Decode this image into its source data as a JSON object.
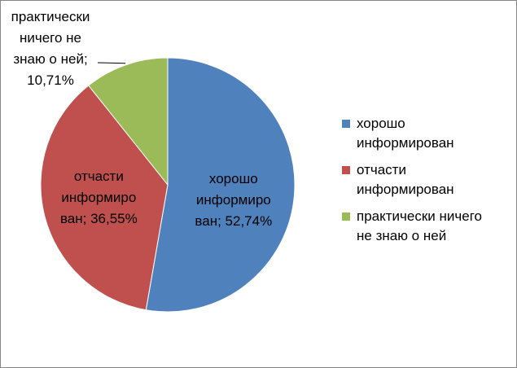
{
  "chart_data": {
    "type": "pie",
    "title": "",
    "legend_position": "right",
    "slices": [
      {
        "label": "хорошо информирован",
        "value": 52.74,
        "color": "#4F81BD",
        "data_label_lines": [
          "хорошо",
          "информиро",
          "ван; 52,74%"
        ]
      },
      {
        "label": "отчасти информирован",
        "value": 36.55,
        "color": "#C0504D",
        "data_label_lines": [
          "отчасти",
          "информиро",
          "ван; 36,55%"
        ]
      },
      {
        "label": "практически ничего не знаю о ней",
        "value": 10.71,
        "color": "#9BBB59",
        "data_label_lines": [
          "практически",
          "ничего не",
          "знаю о ней;",
          "10,71%"
        ]
      }
    ]
  },
  "legend": {
    "items": [
      {
        "lines": [
          "хорошо",
          "информирован"
        ],
        "color": "#4F81BD"
      },
      {
        "lines": [
          "отчасти",
          "информирован"
        ],
        "color": "#C0504D"
      },
      {
        "lines": [
          "практически ничего",
          "не знаю о ней"
        ],
        "color": "#9BBB59"
      }
    ]
  }
}
